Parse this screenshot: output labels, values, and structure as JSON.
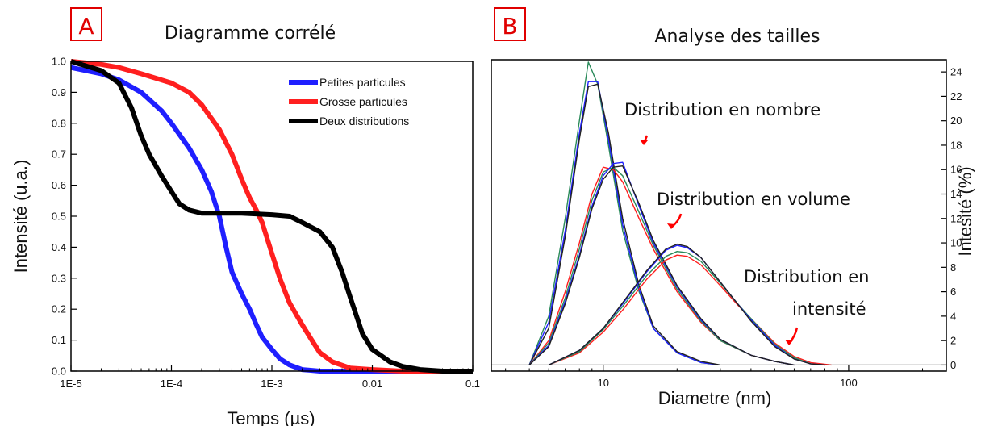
{
  "chart_data": [
    {
      "type": "line",
      "panel_letter": "A",
      "title": "Diagramme corrélé",
      "xlabel": "Temps (µs)",
      "ylabel": "Intensité (u.a.)",
      "x_scale": "log",
      "xlim": [
        1e-05,
        0.1
      ],
      "ylim": [
        0,
        1.0
      ],
      "x_ticks": [
        {
          "value": 1e-05,
          "label": "1E-5"
        },
        {
          "value": 0.0001,
          "label": "1E-4"
        },
        {
          "value": 0.001,
          "label": "1E-3"
        },
        {
          "value": 0.01,
          "label": "0.01"
        },
        {
          "value": 0.1,
          "label": "0.1"
        }
      ],
      "y_ticks": [
        "0.0",
        "0.1",
        "0.2",
        "0.3",
        "0.4",
        "0.5",
        "0.6",
        "0.7",
        "0.8",
        "0.9",
        "1.0"
      ],
      "legend_position": "top-right",
      "series": [
        {
          "name": "Petites particules",
          "color": "#1f1fff",
          "points": [
            [
              1e-05,
              0.98
            ],
            [
              2e-05,
              0.96
            ],
            [
              3e-05,
              0.94
            ],
            [
              5e-05,
              0.9
            ],
            [
              8e-05,
              0.84
            ],
            [
              0.0001,
              0.8
            ],
            [
              0.00015,
              0.72
            ],
            [
              0.0002,
              0.65
            ],
            [
              0.00025,
              0.58
            ],
            [
              0.0003,
              0.5
            ],
            [
              0.00035,
              0.4
            ],
            [
              0.0004,
              0.32
            ],
            [
              0.0005,
              0.25
            ],
            [
              0.0006,
              0.2
            ],
            [
              0.0007,
              0.15
            ],
            [
              0.0008,
              0.11
            ],
            [
              0.001,
              0.07
            ],
            [
              0.0012,
              0.04
            ],
            [
              0.0015,
              0.02
            ],
            [
              0.002,
              0.005
            ],
            [
              0.003,
              0.0
            ],
            [
              0.1,
              0.0
            ]
          ]
        },
        {
          "name": "Grosse particules",
          "color": "#ff1f1f",
          "points": [
            [
              1e-05,
              1.0
            ],
            [
              2e-05,
              0.99
            ],
            [
              3e-05,
              0.98
            ],
            [
              5e-05,
              0.96
            ],
            [
              0.0001,
              0.93
            ],
            [
              0.00015,
              0.9
            ],
            [
              0.0002,
              0.86
            ],
            [
              0.0003,
              0.78
            ],
            [
              0.0004,
              0.7
            ],
            [
              0.0005,
              0.62
            ],
            [
              0.0006,
              0.56
            ],
            [
              0.0007,
              0.52
            ],
            [
              0.0008,
              0.48
            ],
            [
              0.001,
              0.38
            ],
            [
              0.0012,
              0.3
            ],
            [
              0.0015,
              0.22
            ],
            [
              0.002,
              0.15
            ],
            [
              0.0025,
              0.1
            ],
            [
              0.003,
              0.06
            ],
            [
              0.004,
              0.03
            ],
            [
              0.006,
              0.01
            ],
            [
              0.01,
              0.005
            ],
            [
              0.02,
              0.0
            ],
            [
              0.1,
              0.0
            ]
          ]
        },
        {
          "name": "Deux distributions",
          "color": "#000000",
          "points": [
            [
              1e-05,
              1.0
            ],
            [
              2e-05,
              0.97
            ],
            [
              3e-05,
              0.93
            ],
            [
              4e-05,
              0.85
            ],
            [
              5e-05,
              0.76
            ],
            [
              6e-05,
              0.7
            ],
            [
              8e-05,
              0.63
            ],
            [
              0.0001,
              0.58
            ],
            [
              0.00012,
              0.54
            ],
            [
              0.00015,
              0.52
            ],
            [
              0.0002,
              0.51
            ],
            [
              0.0005,
              0.51
            ],
            [
              0.001,
              0.505
            ],
            [
              0.0015,
              0.5
            ],
            [
              0.002,
              0.48
            ],
            [
              0.003,
              0.45
            ],
            [
              0.004,
              0.4
            ],
            [
              0.005,
              0.32
            ],
            [
              0.006,
              0.24
            ],
            [
              0.008,
              0.12
            ],
            [
              0.01,
              0.07
            ],
            [
              0.015,
              0.03
            ],
            [
              0.02,
              0.015
            ],
            [
              0.03,
              0.005
            ],
            [
              0.05,
              0.0
            ],
            [
              0.1,
              0.0
            ]
          ]
        }
      ]
    },
    {
      "type": "line",
      "panel_letter": "B",
      "title": "Analyse des tailles",
      "xlabel": "Diametre (nm)",
      "ylabel": "Intesité (%)",
      "x_scale": "log",
      "xlim": [
        3.5,
        250
      ],
      "ylim": [
        -0.5,
        25
      ],
      "x_ticks": [
        {
          "value": 10,
          "label": "10"
        },
        {
          "value": 100,
          "label": "100"
        }
      ],
      "y_ticks": [
        "0",
        "2",
        "4",
        "6",
        "8",
        "10",
        "12",
        "14",
        "16",
        "18",
        "20",
        "22",
        "24"
      ],
      "annotations": [
        {
          "lines": [
            "Distribution en nombre"
          ],
          "arrow_color": "#ff0000"
        },
        {
          "lines": [
            "Distribution en volume"
          ],
          "arrow_color": "#ff0000"
        },
        {
          "lines": [
            "Distribution en",
            "intensité"
          ],
          "arrow_color": "#ff0000"
        }
      ],
      "series": [
        {
          "group": "nombre",
          "color": "#2a8a5a",
          "points": [
            [
              5,
              0
            ],
            [
              6,
              4
            ],
            [
              7,
              12
            ],
            [
              8,
              20
            ],
            [
              8.7,
              24.8
            ],
            [
              9.5,
              23
            ],
            [
              10.5,
              18
            ],
            [
              12,
              11
            ],
            [
              14,
              6
            ],
            [
              16,
              3
            ],
            [
              20,
              1
            ],
            [
              25,
              0.2
            ],
            [
              30,
              0
            ]
          ]
        },
        {
          "group": "nombre",
          "color": "#1f1fff",
          "points": [
            [
              5,
              0
            ],
            [
              6,
              3.5
            ],
            [
              7,
              11
            ],
            [
              8,
              19
            ],
            [
              8.7,
              23.2
            ],
            [
              9.5,
              23.2
            ],
            [
              10.5,
              18.5
            ],
            [
              12,
              11.5
            ],
            [
              14,
              6.2
            ],
            [
              16,
              3
            ],
            [
              20,
              1
            ],
            [
              25,
              0.2
            ],
            [
              30,
              0
            ]
          ]
        },
        {
          "group": "nombre",
          "color": "#222222",
          "points": [
            [
              5,
              0
            ],
            [
              6,
              3
            ],
            [
              7,
              10.5
            ],
            [
              8,
              18.5
            ],
            [
              8.7,
              22.8
            ],
            [
              9.5,
              23
            ],
            [
              10.5,
              19
            ],
            [
              12,
              12
            ],
            [
              14,
              6.5
            ],
            [
              16,
              3.2
            ],
            [
              20,
              1.1
            ],
            [
              25,
              0.3
            ],
            [
              30,
              0
            ]
          ]
        },
        {
          "group": "volume",
          "color": "#ff1f1f",
          "points": [
            [
              5,
              0
            ],
            [
              6,
              2
            ],
            [
              7,
              6
            ],
            [
              8,
              10
            ],
            [
              9,
              14
            ],
            [
              10,
              16.2
            ],
            [
              11,
              16
            ],
            [
              12,
              15
            ],
            [
              14,
              12
            ],
            [
              16,
              9.5
            ],
            [
              20,
              6
            ],
            [
              25,
              3.5
            ],
            [
              30,
              2
            ],
            [
              40,
              0.8
            ],
            [
              50,
              0.3
            ],
            [
              60,
              0
            ]
          ]
        },
        {
          "group": "volume",
          "color": "#2a8a5a",
          "points": [
            [
              5,
              0
            ],
            [
              6,
              1.8
            ],
            [
              7,
              5.5
            ],
            [
              8,
              9.5
            ],
            [
              9,
              13.5
            ],
            [
              10,
              15.8
            ],
            [
              11,
              16.2
            ],
            [
              12,
              15.5
            ],
            [
              14,
              12.5
            ],
            [
              16,
              9.8
            ],
            [
              20,
              6.2
            ],
            [
              25,
              3.6
            ],
            [
              30,
              2
            ],
            [
              40,
              0.8
            ],
            [
              50,
              0.3
            ],
            [
              60,
              0
            ]
          ]
        },
        {
          "group": "volume",
          "color": "#1f1fff",
          "points": [
            [
              5,
              0
            ],
            [
              6,
              1.6
            ],
            [
              7,
              5.2
            ],
            [
              8,
              9
            ],
            [
              9,
              13
            ],
            [
              10,
              15.5
            ],
            [
              11,
              16.5
            ],
            [
              12,
              16.6
            ],
            [
              14,
              13
            ],
            [
              16,
              10
            ],
            [
              20,
              6.4
            ],
            [
              25,
              3.7
            ],
            [
              30,
              2.1
            ],
            [
              40,
              0.8
            ],
            [
              50,
              0.3
            ],
            [
              60,
              0
            ]
          ]
        },
        {
          "group": "volume",
          "color": "#222222",
          "points": [
            [
              5,
              0
            ],
            [
              6,
              1.5
            ],
            [
              7,
              5
            ],
            [
              8,
              8.8
            ],
            [
              9,
              12.8
            ],
            [
              10,
              15.2
            ],
            [
              11,
              16.2
            ],
            [
              12,
              16.3
            ],
            [
              14,
              13.2
            ],
            [
              16,
              10.2
            ],
            [
              20,
              6.5
            ],
            [
              25,
              3.8
            ],
            [
              30,
              2.1
            ],
            [
              40,
              0.8
            ],
            [
              50,
              0.3
            ],
            [
              60,
              0
            ]
          ]
        },
        {
          "group": "intensite",
          "color": "#ff1f1f",
          "points": [
            [
              6,
              0
            ],
            [
              8,
              1
            ],
            [
              10,
              2.7
            ],
            [
              12,
              4.5
            ],
            [
              15,
              7
            ],
            [
              18,
              8.6
            ],
            [
              20,
              9
            ],
            [
              22,
              8.9
            ],
            [
              25,
              8.2
            ],
            [
              30,
              6.5
            ],
            [
              35,
              5
            ],
            [
              40,
              3.8
            ],
            [
              50,
              1.8
            ],
            [
              60,
              0.7
            ],
            [
              70,
              0.2
            ],
            [
              85,
              0
            ]
          ]
        },
        {
          "group": "intensite",
          "color": "#2a8a5a",
          "points": [
            [
              6,
              0
            ],
            [
              8,
              1.1
            ],
            [
              10,
              2.9
            ],
            [
              12,
              4.8
            ],
            [
              15,
              7.3
            ],
            [
              18,
              8.9
            ],
            [
              20,
              9.3
            ],
            [
              22,
              9.2
            ],
            [
              25,
              8.5
            ],
            [
              30,
              6.7
            ],
            [
              35,
              5.1
            ],
            [
              40,
              3.8
            ],
            [
              50,
              1.7
            ],
            [
              60,
              0.6
            ],
            [
              70,
              0.1
            ],
            [
              80,
              0
            ]
          ]
        },
        {
          "group": "intensite",
          "color": "#1f1fff",
          "points": [
            [
              6,
              0
            ],
            [
              8,
              1.2
            ],
            [
              10,
              3
            ],
            [
              12,
              5
            ],
            [
              15,
              7.6
            ],
            [
              18,
              9.4
            ],
            [
              20,
              9.8
            ],
            [
              22,
              9.6
            ],
            [
              25,
              8.8
            ],
            [
              30,
              6.8
            ],
            [
              35,
              5.1
            ],
            [
              40,
              3.7
            ],
            [
              50,
              1.6
            ],
            [
              60,
              0.5
            ],
            [
              70,
              0.1
            ],
            [
              80,
              0
            ]
          ]
        },
        {
          "group": "intensite",
          "color": "#222222",
          "points": [
            [
              6,
              0
            ],
            [
              8,
              1.2
            ],
            [
              10,
              3
            ],
            [
              12,
              5.1
            ],
            [
              15,
              7.7
            ],
            [
              18,
              9.5
            ],
            [
              20,
              9.9
            ],
            [
              22,
              9.7
            ],
            [
              25,
              8.8
            ],
            [
              30,
              6.8
            ],
            [
              35,
              5.1
            ],
            [
              40,
              3.6
            ],
            [
              50,
              1.5
            ],
            [
              60,
              0.5
            ],
            [
              70,
              0.1
            ],
            [
              80,
              0
            ]
          ]
        }
      ]
    }
  ]
}
